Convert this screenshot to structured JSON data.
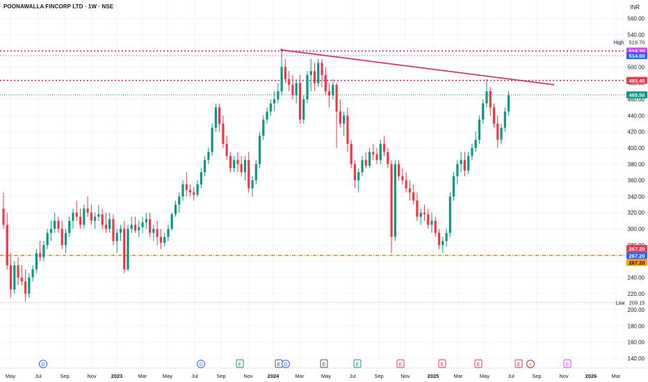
{
  "header": {
    "title": "POONAWALLA FINCORP LTD · 1W · NSE",
    "currency": "INR"
  },
  "colors": {
    "up": "#089981",
    "down": "#f23645",
    "trendline": "#e91e63",
    "resistance": "#e91e63",
    "high_line": "#9c27b0",
    "support": "#f57c00",
    "current_line": "#089981",
    "grid": "#f0f3fa",
    "axis_text": "#131722"
  },
  "chart_data": {
    "type": "candlestick",
    "symbol": "POONAWALLA FINCORP LTD",
    "interval": "1W",
    "exchange": "NSE",
    "currency": "INR",
    "ylim": [
      130,
      570
    ],
    "y_ticks": [
      140,
      160,
      180,
      200,
      220,
      240,
      260,
      280,
      300,
      320,
      340,
      360,
      380,
      400,
      420,
      440,
      460,
      480,
      500,
      520,
      540,
      560
    ],
    "x_ticks": [
      "May",
      "Jul",
      "Sep",
      "Nov",
      "2023",
      "Mar",
      "May",
      "Jul",
      "Sep",
      "Nov",
      "2024",
      "Mar",
      "May",
      "Jul",
      "Sep",
      "Nov",
      "2025",
      "Mar",
      "May",
      "Jul",
      "Sep",
      "Nov",
      "2026",
      "Mar"
    ],
    "price_labels": {
      "high": {
        "label": "High",
        "value": "519.70"
      },
      "level_514": "514.00",
      "level_519": "519.70",
      "resistance": "483.40",
      "last": "465.50",
      "support_a": "267.20",
      "support_b": "267.20",
      "support_c": "267.20",
      "low": {
        "label": "Low",
        "value": "209.15"
      }
    },
    "levels": {
      "high": 519.7,
      "level_514": 514.0,
      "resistance": 483.4,
      "last": 465.5,
      "support": 267.2,
      "low": 209.15
    },
    "trendline": {
      "from": {
        "x": 101,
        "y": 521
      },
      "to": {
        "x": 198,
        "y": 478
      }
    },
    "events": [
      {
        "x": 15,
        "label": "D",
        "color": "#2962ff"
      },
      {
        "x": 72,
        "label": "D",
        "color": "#2962ff"
      },
      {
        "x": 86,
        "label": "E",
        "color": "#089981"
      },
      {
        "x": 100,
        "label": "E",
        "color": "#555555"
      },
      {
        "x": 103,
        "label": "D",
        "color": "#2962ff"
      },
      {
        "x": 117,
        "label": "E",
        "color": "#555555"
      },
      {
        "x": 129,
        "label": "E",
        "color": "#089981"
      },
      {
        "x": 144,
        "label": "E",
        "color": "#f23645"
      },
      {
        "x": 159,
        "label": "E",
        "color": "#f23645"
      },
      {
        "x": 172,
        "label": "E",
        "color": "#f23645"
      },
      {
        "x": 186,
        "label": "E",
        "color": "#f23645"
      },
      {
        "x": 191,
        "label": "⚡",
        "color": "#9c27b0"
      },
      {
        "x": 204,
        "label": "E",
        "color": "#e040fb"
      }
    ],
    "candles": [
      [
        0,
        325,
        345,
        300,
        305
      ],
      [
        1,
        305,
        320,
        250,
        255
      ],
      [
        2,
        255,
        270,
        215,
        225
      ],
      [
        3,
        225,
        260,
        220,
        255
      ],
      [
        4,
        255,
        265,
        230,
        240
      ],
      [
        5,
        240,
        255,
        230,
        235
      ],
      [
        6,
        235,
        250,
        210,
        220
      ],
      [
        7,
        220,
        245,
        215,
        240
      ],
      [
        8,
        240,
        255,
        235,
        250
      ],
      [
        9,
        250,
        275,
        245,
        270
      ],
      [
        10,
        270,
        285,
        260,
        265
      ],
      [
        11,
        265,
        285,
        260,
        280
      ],
      [
        12,
        280,
        300,
        275,
        295
      ],
      [
        13,
        295,
        310,
        285,
        300
      ],
      [
        14,
        300,
        320,
        295,
        310
      ],
      [
        15,
        310,
        315,
        295,
        300
      ],
      [
        16,
        300,
        310,
        275,
        280
      ],
      [
        17,
        280,
        300,
        270,
        295
      ],
      [
        18,
        295,
        315,
        290,
        310
      ],
      [
        19,
        310,
        325,
        300,
        320
      ],
      [
        20,
        320,
        335,
        310,
        315
      ],
      [
        21,
        315,
        325,
        300,
        305
      ],
      [
        22,
        305,
        330,
        300,
        325
      ],
      [
        23,
        325,
        340,
        315,
        320
      ],
      [
        24,
        320,
        330,
        305,
        310
      ],
      [
        25,
        310,
        320,
        300,
        315
      ],
      [
        26,
        315,
        330,
        310,
        318
      ],
      [
        27,
        318,
        325,
        300,
        305
      ],
      [
        28,
        305,
        320,
        295,
        300
      ],
      [
        29,
        300,
        320,
        295,
        312
      ],
      [
        30,
        312,
        318,
        280,
        285
      ],
      [
        31,
        285,
        300,
        270,
        295
      ],
      [
        32,
        295,
        305,
        285,
        300
      ],
      [
        33,
        300,
        310,
        245,
        250
      ],
      [
        34,
        250,
        305,
        248,
        300
      ],
      [
        35,
        300,
        315,
        295,
        305
      ],
      [
        36,
        305,
        315,
        295,
        298
      ],
      [
        37,
        298,
        310,
        290,
        302
      ],
      [
        38,
        302,
        315,
        295,
        308
      ],
      [
        39,
        308,
        320,
        300,
        312
      ],
      [
        40,
        312,
        320,
        290,
        295
      ],
      [
        41,
        295,
        305,
        285,
        300
      ],
      [
        42,
        300,
        310,
        280,
        290
      ],
      [
        43,
        290,
        300,
        275,
        283
      ],
      [
        44,
        283,
        295,
        278,
        290
      ],
      [
        45,
        290,
        305,
        285,
        300
      ],
      [
        46,
        300,
        320,
        298,
        318
      ],
      [
        47,
        318,
        335,
        315,
        330
      ],
      [
        48,
        330,
        345,
        320,
        340
      ],
      [
        49,
        340,
        360,
        335,
        355
      ],
      [
        50,
        355,
        370,
        340,
        348
      ],
      [
        51,
        348,
        355,
        340,
        345
      ],
      [
        52,
        345,
        352,
        335,
        342
      ],
      [
        53,
        342,
        360,
        340,
        355
      ],
      [
        54,
        355,
        375,
        350,
        370
      ],
      [
        55,
        370,
        390,
        365,
        385
      ],
      [
        56,
        385,
        400,
        380,
        395
      ],
      [
        57,
        395,
        430,
        390,
        425
      ],
      [
        58,
        425,
        455,
        420,
        450
      ],
      [
        59,
        450,
        455,
        420,
        430
      ],
      [
        60,
        430,
        440,
        400,
        405
      ],
      [
        61,
        405,
        415,
        385,
        390
      ],
      [
        62,
        390,
        395,
        370,
        375
      ],
      [
        63,
        375,
        390,
        370,
        385
      ],
      [
        64,
        385,
        395,
        370,
        380
      ],
      [
        65,
        380,
        390,
        365,
        370
      ],
      [
        66,
        370,
        390,
        360,
        385
      ],
      [
        67,
        385,
        395,
        345,
        350
      ],
      [
        68,
        350,
        365,
        340,
        360
      ],
      [
        69,
        360,
        385,
        355,
        380
      ],
      [
        70,
        380,
        420,
        375,
        415
      ],
      [
        71,
        415,
        440,
        410,
        435
      ],
      [
        72,
        435,
        450,
        430,
        445
      ],
      [
        73,
        445,
        460,
        440,
        455
      ],
      [
        74,
        455,
        470,
        445,
        460
      ],
      [
        75,
        460,
        480,
        455,
        470
      ],
      [
        76,
        470,
        520,
        465,
        500
      ],
      [
        77,
        500,
        510,
        480,
        485
      ],
      [
        78,
        485,
        495,
        470,
        478
      ],
      [
        79,
        478,
        490,
        460,
        465
      ],
      [
        80,
        465,
        485,
        455,
        480
      ],
      [
        81,
        480,
        490,
        430,
        435
      ],
      [
        82,
        435,
        465,
        430,
        460
      ],
      [
        83,
        460,
        495,
        455,
        490
      ],
      [
        84,
        490,
        510,
        470,
        495
      ],
      [
        85,
        495,
        505,
        470,
        480
      ],
      [
        86,
        480,
        510,
        475,
        505
      ],
      [
        87,
        505,
        510,
        475,
        490
      ],
      [
        88,
        490,
        500,
        465,
        470
      ],
      [
        89,
        470,
        480,
        450,
        465
      ],
      [
        90,
        465,
        485,
        460,
        478
      ],
      [
        91,
        478,
        480,
        400,
        445
      ],
      [
        92,
        445,
        460,
        425,
        430
      ],
      [
        93,
        430,
        445,
        415,
        440
      ],
      [
        94,
        440,
        450,
        395,
        405
      ],
      [
        95,
        405,
        410,
        375,
        380
      ],
      [
        96,
        380,
        385,
        350,
        360
      ],
      [
        97,
        360,
        375,
        345,
        370
      ],
      [
        98,
        370,
        390,
        365,
        385
      ],
      [
        99,
        385,
        395,
        375,
        378
      ],
      [
        100,
        378,
        400,
        375,
        395
      ],
      [
        101,
        395,
        405,
        385,
        392
      ],
      [
        102,
        392,
        400,
        380,
        385
      ],
      [
        103,
        385,
        410,
        380,
        405
      ],
      [
        104,
        405,
        415,
        390,
        395
      ],
      [
        105,
        395,
        400,
        375,
        380
      ],
      [
        106,
        380,
        385,
        270,
        290
      ],
      [
        107,
        290,
        385,
        285,
        380
      ],
      [
        108,
        380,
        385,
        360,
        365
      ],
      [
        109,
        365,
        375,
        355,
        360
      ],
      [
        110,
        360,
        370,
        345,
        350
      ],
      [
        111,
        350,
        360,
        335,
        345
      ],
      [
        112,
        345,
        355,
        330,
        335
      ],
      [
        113,
        335,
        345,
        310,
        315
      ],
      [
        114,
        315,
        325,
        305,
        320
      ],
      [
        115,
        320,
        330,
        310,
        318
      ],
      [
        116,
        318,
        325,
        300,
        305
      ],
      [
        117,
        305,
        320,
        295,
        310
      ],
      [
        118,
        310,
        315,
        290,
        295
      ],
      [
        119,
        295,
        300,
        275,
        280
      ],
      [
        120,
        280,
        290,
        270,
        285
      ],
      [
        121,
        285,
        300,
        278,
        295
      ],
      [
        122,
        295,
        345,
        290,
        340
      ],
      [
        123,
        340,
        370,
        335,
        365
      ],
      [
        124,
        365,
        385,
        355,
        380
      ],
      [
        125,
        380,
        395,
        370,
        385
      ],
      [
        126,
        385,
        395,
        365,
        372
      ],
      [
        127,
        372,
        395,
        368,
        390
      ],
      [
        128,
        390,
        405,
        385,
        400
      ],
      [
        129,
        400,
        420,
        395,
        410
      ],
      [
        130,
        410,
        440,
        405,
        435
      ],
      [
        131,
        435,
        460,
        430,
        455
      ],
      [
        132,
        455,
        485,
        450,
        470
      ],
      [
        133,
        470,
        475,
        440,
        450
      ],
      [
        134,
        450,
        455,
        425,
        430
      ],
      [
        135,
        430,
        440,
        400,
        410
      ],
      [
        136,
        410,
        430,
        405,
        425
      ],
      [
        137,
        425,
        450,
        420,
        445
      ],
      [
        138,
        445,
        470,
        440,
        465
      ]
    ]
  }
}
